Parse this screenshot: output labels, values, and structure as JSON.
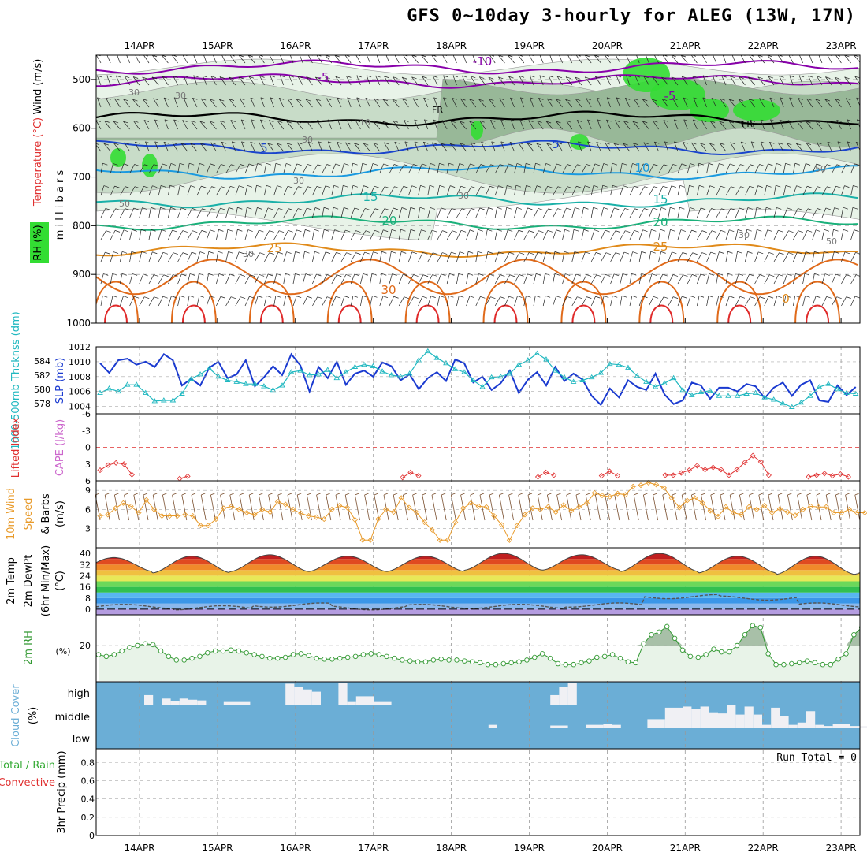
{
  "header": {
    "title": "GFS 0~10day 3-hourly for ALEG (13W, 17N)"
  },
  "run_total": "Run Total = 0",
  "colors": {
    "temp_purple": "#8800aa",
    "temp_blue1": "#1a44cc",
    "temp_blue2": "#1a9ae0",
    "temp_teal": "#1ab0a8",
    "temp_green": "#1ab07a",
    "temp_orange": "#e08a1a",
    "temp_orange2": "#e06a1a",
    "temp_red": "#e02a2a",
    "rh_light": "#e8f3e8",
    "rh_mid": "#c8dcc8",
    "rh_dark": "#98b898",
    "rh_green": "#33dd33",
    "slp": "#1a3ad0",
    "thickness": "#20b8c0",
    "lifted": "#e03030",
    "cape": "#cc66cc",
    "wind_speed": "#e89a2a",
    "wind_barb": "#7a5030",
    "rh2m": "#339933",
    "cloud_bg": "#6baed6",
    "cloud_block": "#f0f0f4",
    "precip": "#33aa33"
  },
  "chart_data": [
    {
      "type": "heatmap",
      "name": "upper-air",
      "title": "GFS 0~10day 3-hourly for ALEG (13W, 17N)",
      "ylabel": "millibars",
      "legend_labels": [
        "Wind (m/s)",
        "Temperature (°C)",
        "RH (%)"
      ],
      "yticks": [
        500,
        600,
        700,
        800,
        900,
        1000
      ],
      "ylim": [
        450,
        1000
      ],
      "categories": [
        "14APR",
        "15APR",
        "16APR",
        "17APR",
        "18APR",
        "19APR",
        "20APR",
        "21APR",
        "22APR",
        "23APR"
      ],
      "isotherms": [
        {
          "label": "-10",
          "level": 475,
          "color": "#8800aa"
        },
        {
          "label": "-5",
          "level": 503,
          "color": "#8800aa"
        },
        {
          "label": "FR",
          "level": 580,
          "color": "#000000"
        },
        {
          "label": "5",
          "level": 640,
          "color": "#1a44cc"
        },
        {
          "label": "10",
          "level": 690,
          "color": "#1a9ae0"
        },
        {
          "label": "15",
          "level": 748,
          "color": "#1ab0a8"
        },
        {
          "label": "20",
          "level": 795,
          "color": "#1ab07a"
        },
        {
          "label": "25",
          "level": 850,
          "color": "#e08a1a"
        },
        {
          "label": "30",
          "level": 905,
          "color": "#e06a1a"
        }
      ],
      "isotherm_labels": [
        "-10",
        "-5",
        "-5",
        "FR",
        "FR",
        "5",
        "5",
        "10",
        "15",
        "15",
        "20",
        "20",
        "25",
        "25",
        "30",
        "0"
      ],
      "rh_labels": [
        "30",
        "30",
        "10",
        "30",
        "50",
        "30",
        "50",
        "30",
        "50",
        "30",
        "30"
      ]
    },
    {
      "type": "line",
      "name": "slp-thickness",
      "ylabel_left": "1000-500mb Thcknss (dm)",
      "ylabel_right": "SLP (mb)",
      "yticks_left": [
        578,
        580,
        582,
        584
      ],
      "yticks_right": [
        1004,
        1006,
        1008,
        1010,
        1012
      ],
      "ylim_right": [
        1003,
        1012
      ],
      "series": [
        {
          "name": "SLP",
          "color": "#1a3ad0",
          "values": [
            1009.8,
            1008.5,
            1010.2,
            1010.4,
            1009.6,
            1010.0,
            1009.3,
            1011.0,
            1010.2,
            1006.8,
            1007.7,
            1006.8,
            1009.2,
            1010.0,
            1007.8,
            1008.3,
            1010.2,
            1006.7,
            1007.9,
            1009.4,
            1008.2,
            1011.0,
            1009.5,
            1006.0,
            1009.3,
            1007.8,
            1010.0,
            1006.9,
            1008.4,
            1008.8,
            1008.0,
            1009.9,
            1009.4,
            1007.5,
            1008.3,
            1006.3,
            1007.8,
            1008.6,
            1007.4,
            1010.3,
            1009.8,
            1007.2,
            1008.0,
            1006.2,
            1007.1,
            1008.8,
            1005.8,
            1007.6,
            1008.6,
            1006.8,
            1009.3,
            1007.4,
            1008.4,
            1007.6,
            1005.4,
            1004.2,
            1006.4,
            1005.2,
            1007.5,
            1006.6,
            1006.2,
            1008.4,
            1005.6,
            1004.3,
            1004.8,
            1007.2,
            1006.8,
            1005.0,
            1006.5,
            1006.5,
            1006.0,
            1007.0,
            1006.7,
            1005.1,
            1006.5,
            1007.2,
            1005.4,
            1006.9,
            1007.5,
            1004.8,
            1004.6,
            1006.8,
            1005.5,
            1006.6
          ]
        },
        {
          "name": "Thickness",
          "color": "#20b8c0",
          "values": [
            1005.8,
            1006.4,
            1006.0,
            1006.9,
            1006.9,
            1005.8,
            1004.7,
            1004.8,
            1004.8,
            1005.7,
            1007.7,
            1008.3,
            1009.1,
            1008.0,
            1007.5,
            1007.3,
            1007.0,
            1007.0,
            1006.7,
            1006.2,
            1006.8,
            1008.6,
            1008.8,
            1008.2,
            1008.3,
            1008.9,
            1007.8,
            1008.6,
            1009.3,
            1009.6,
            1009.4,
            1008.7,
            1008.2,
            1008.0,
            1008.4,
            1010.2,
            1011.4,
            1010.5,
            1009.8,
            1009.0,
            1008.6,
            1007.5,
            1006.6,
            1007.9,
            1008.0,
            1008.4,
            1009.6,
            1010.2,
            1011.1,
            1010.3,
            1008.8,
            1007.9,
            1007.3,
            1007.5,
            1007.9,
            1008.5,
            1009.7,
            1009.6,
            1009.2,
            1008.1,
            1007.3,
            1006.6,
            1007.1,
            1007.8,
            1006.2,
            1005.5,
            1005.9,
            1006.1,
            1005.4,
            1005.4,
            1005.4,
            1005.7,
            1005.8,
            1005.2,
            1004.9,
            1004.4,
            1003.9,
            1004.5,
            1005.4,
            1006.6,
            1007.0,
            1006.3,
            1005.8,
            1005.7
          ]
        }
      ]
    },
    {
      "type": "line",
      "name": "lifted-index",
      "ylabel": "Lifted Index",
      "ylabel2": "CAPE (J/kg)",
      "yticks": [
        -6,
        -3,
        0,
        3,
        6
      ],
      "ylim": [
        -6,
        6
      ],
      "series": [
        {
          "name": "Lifted Index",
          "color": "#e03030",
          "segments": [
            {
              "start": 0,
              "values": [
                4.1,
                3.2,
                2.8,
                3.0,
                4.9
              ]
            },
            {
              "start": 10,
              "values": [
                5.6,
                5.2
              ]
            },
            {
              "start": 38,
              "values": [
                5.4,
                4.5,
                5.1
              ]
            },
            {
              "start": 55,
              "values": [
                5.3,
                4.5,
                5.0
              ]
            },
            {
              "start": 63,
              "values": [
                5.1,
                4.3,
                5.1
              ]
            },
            {
              "start": 71,
              "values": [
                5.0,
                5.0,
                4.6,
                4.1,
                3.3,
                4.0,
                3.6,
                4.0,
                5.0,
                4.0,
                2.7,
                1.5,
                2.6,
                5.0
              ]
            },
            {
              "start": 89,
              "values": [
                5.3,
                5.0,
                4.7,
                5.1,
                4.8,
                5.3
              ]
            }
          ]
        }
      ]
    },
    {
      "type": "line",
      "name": "wind-10m",
      "ylabel": "10m Wind Speed & Barbs (m/s)",
      "yticks": [
        3,
        6,
        9
      ],
      "ylim": [
        0,
        10.5
      ],
      "series": [
        {
          "name": "Wind speed",
          "color": "#e89a2a",
          "values": [
            5.0,
            5.2,
            6.2,
            7.0,
            6.5,
            5.5,
            7.5,
            6.0,
            5.0,
            5.0,
            5.0,
            5.2,
            5.0,
            3.5,
            3.5,
            4.5,
            6.2,
            6.5,
            6.0,
            5.5,
            5.2,
            6.0,
            5.6,
            7.2,
            6.8,
            6.0,
            5.4,
            5.0,
            4.8,
            4.5,
            6.0,
            6.6,
            6.3,
            4.4,
            1.2,
            1.2,
            4.5,
            6.0,
            5.6,
            7.8,
            6.3,
            5.5,
            4.0,
            2.8,
            1.2,
            1.2,
            4.0,
            6.2,
            7.0,
            6.5,
            6.4,
            5.0,
            3.6,
            1.2,
            3.5,
            5.2,
            6.2,
            6.0,
            6.4,
            5.6,
            6.7,
            5.8,
            6.4,
            7.0,
            8.6,
            8.2,
            8.0,
            8.5,
            8.3,
            9.6,
            9.8,
            10.2,
            9.9,
            9.4,
            7.8,
            6.3,
            7.4,
            7.8,
            7.0,
            5.8,
            4.9,
            6.4,
            5.5,
            5.2,
            6.4,
            6.0,
            6.6,
            5.5,
            6.1,
            5.6,
            5.1,
            6.0,
            6.5,
            6.4,
            6.4,
            5.5,
            5.5,
            6.0,
            5.5,
            5.5
          ]
        }
      ]
    },
    {
      "type": "area",
      "name": "temp-2m",
      "ylabel": "2m Temp 2m DewPt (6hr Min/Max) (°C)",
      "yticks": [
        0,
        8,
        16,
        24,
        32,
        40
      ],
      "ylim": [
        -4,
        44
      ],
      "categories": [
        "14APR",
        "15APR",
        "16APR",
        "17APR",
        "18APR",
        "19APR",
        "20APR",
        "21APR",
        "22APR",
        "23APR"
      ],
      "series": [
        {
          "name": "Temp max",
          "values": [
            37,
            38,
            39,
            38,
            38,
            40,
            39,
            40,
            38,
            38
          ]
        },
        {
          "name": "Temp min",
          "values": [
            27,
            26,
            27,
            27,
            27,
            28,
            28,
            27,
            26,
            25
          ]
        },
        {
          "name": "DewPt",
          "values": [
            2,
            1,
            3,
            1,
            2,
            2,
            3,
            9,
            8,
            3
          ]
        }
      ]
    },
    {
      "type": "area",
      "name": "rh-2m",
      "ylabel": "2m RH",
      "yunit": "(%)",
      "yticks": [
        20
      ],
      "ylim": [
        0,
        37
      ],
      "series": [
        {
          "name": "2m RH",
          "color": "#339933",
          "values": [
            15.0,
            14.0,
            15.0,
            17.0,
            19.0,
            20.0,
            21.0,
            20.5,
            17.0,
            14.0,
            12.0,
            12.0,
            13.0,
            14.0,
            16.0,
            17.0,
            17.0,
            17.5,
            17.0,
            16.0,
            15.0,
            14.0,
            13.0,
            13.0,
            13.5,
            15.0,
            15.5,
            14.5,
            13.0,
            12.5,
            12.5,
            13.0,
            13.5,
            14.0,
            15.0,
            15.5,
            15.0,
            14.0,
            13.0,
            12.0,
            11.5,
            11.0,
            11.0,
            12.0,
            12.5,
            12.0,
            12.0,
            11.5,
            11.0,
            10.5,
            9.5,
            9.5,
            10.0,
            10.5,
            11.0,
            12.0,
            13.5,
            15.5,
            13.0,
            10.0,
            9.5,
            9.5,
            10.5,
            11.5,
            13.5,
            14.0,
            15.0,
            13.0,
            11.0,
            10.5,
            21.0,
            26.0,
            27.5,
            30.5,
            24.0,
            17.5,
            14.0,
            13.5,
            15.0,
            18.0,
            16.5,
            16.5,
            20.0,
            26.0,
            31.0,
            30.0,
            15.5,
            9.5,
            9.5,
            10.0,
            10.5,
            11.5,
            10.5,
            9.5,
            9.5,
            12.5,
            15.5,
            26.0,
            30.0
          ]
        }
      ]
    },
    {
      "type": "bar",
      "name": "cloud-cover",
      "ylabel": "Cloud Cover (%)",
      "categories": [
        "high",
        "middle",
        "low"
      ],
      "series": [
        {
          "name": "high",
          "blocks": [
            [
              5,
              6,
              0.45
            ],
            [
              7,
              8,
              0.3
            ],
            [
              8,
              9,
              0.2
            ],
            [
              9,
              10,
              0.3
            ],
            [
              10,
              11,
              0.25
            ],
            [
              11,
              12,
              0.22
            ],
            [
              14,
              17,
              0.15
            ],
            [
              21,
              22,
              0.95
            ],
            [
              22,
              23,
              0.8
            ],
            [
              23,
              24,
              0.7
            ],
            [
              24,
              25,
              0.6
            ],
            [
              27,
              28,
              1.0
            ],
            [
              28,
              29,
              0.15
            ],
            [
              29,
              31,
              0.4
            ],
            [
              31,
              33,
              0.15
            ],
            [
              51,
              52,
              0.45
            ],
            [
              52,
              53,
              0.8
            ],
            [
              53,
              54,
              1.0
            ]
          ]
        },
        {
          "name": "middle",
          "blocks": [
            [
              44,
              45,
              0.15
            ],
            [
              51,
              53,
              0.12
            ],
            [
              55,
              57,
              0.15
            ],
            [
              57,
              58,
              0.2
            ],
            [
              58,
              59,
              0.15
            ],
            [
              62,
              64,
              0.4
            ],
            [
              64,
              66,
              0.9
            ],
            [
              66,
              67,
              0.95
            ],
            [
              67,
              68,
              0.85
            ],
            [
              68,
              69,
              0.95
            ],
            [
              69,
              70,
              0.7
            ],
            [
              70,
              71,
              0.65
            ],
            [
              71,
              72,
              1.0
            ],
            [
              72,
              73,
              0.6
            ],
            [
              73,
              74,
              0.95
            ],
            [
              74,
              75,
              0.6
            ],
            [
              75,
              76,
              0.15
            ],
            [
              76,
              77,
              0.9
            ],
            [
              77,
              78,
              0.55
            ],
            [
              78,
              79,
              0.15
            ],
            [
              79,
              80,
              0.25
            ],
            [
              80,
              81,
              0.75
            ],
            [
              81,
              82,
              0.15
            ],
            [
              82,
              83,
              0.1
            ],
            [
              83,
              85,
              0.2
            ],
            [
              85,
              87,
              0.1
            ]
          ]
        }
      ]
    },
    {
      "type": "bar",
      "name": "precip",
      "ylabel": "3hr Precip (mm)",
      "ylabel2": "Total / Rain",
      "ylabel3": "Convective",
      "yticks": [
        0,
        0.2,
        0.4,
        0.6,
        0.8
      ],
      "ylim": [
        0,
        0.95
      ],
      "values": [],
      "note": "Run Total = 0"
    }
  ],
  "xaxis": {
    "labels": [
      "14APR",
      "15APR",
      "16APR",
      "17APR",
      "18APR",
      "19APR",
      "20APR",
      "21APR",
      "22APR",
      "23APR"
    ]
  }
}
